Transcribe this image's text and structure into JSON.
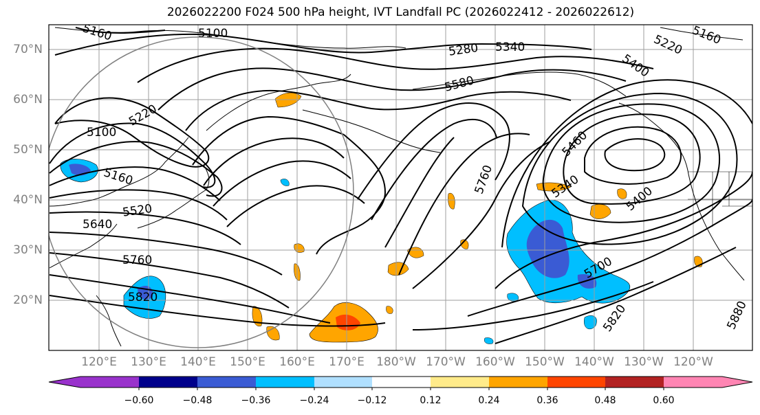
{
  "title": "2026022200 F024 500 hPa height, IVT Landfall PC (2026022412 - 2026022612)",
  "map": {
    "lat_labels": [
      "70°N",
      "60°N",
      "50°N",
      "40°N",
      "30°N",
      "20°N"
    ],
    "lon_labels": [
      "120°E",
      "130°E",
      "140°E",
      "150°E",
      "160°E",
      "170°E",
      "180°W",
      "170°W",
      "160°W",
      "150°W",
      "140°W",
      "130°W",
      "120°W"
    ],
    "contour_labels": [
      "5160",
      "5100",
      "5280",
      "5340",
      "5220",
      "5160",
      "5400",
      "5580",
      "5220",
      "5100",
      "5460",
      "5760",
      "5160",
      "5340",
      "5520",
      "5400",
      "5640",
      "5760",
      "5700",
      "5820",
      "5820",
      "5880"
    ],
    "shading_colors": {
      "strong_negative": "#3a5bd4",
      "negative": "#00bfff",
      "positive_weak": "#ffd36b",
      "positive": "#ffa500",
      "positive_strong": "#ff4500",
      "positive_max": "#b22222"
    }
  },
  "colorbar": {
    "ticks": [
      "−0.60",
      "−0.48",
      "−0.36",
      "−0.24",
      "−0.12",
      "0.12",
      "0.24",
      "0.36",
      "0.48",
      "0.60"
    ],
    "colors": [
      "#9932cc",
      "#00008b",
      "#3a5bd4",
      "#00bfff",
      "#b0e0ff",
      "#ffffff",
      "#ffeb8a",
      "#ffa500",
      "#ff4500",
      "#b22222",
      "#ff85b3"
    ]
  }
}
